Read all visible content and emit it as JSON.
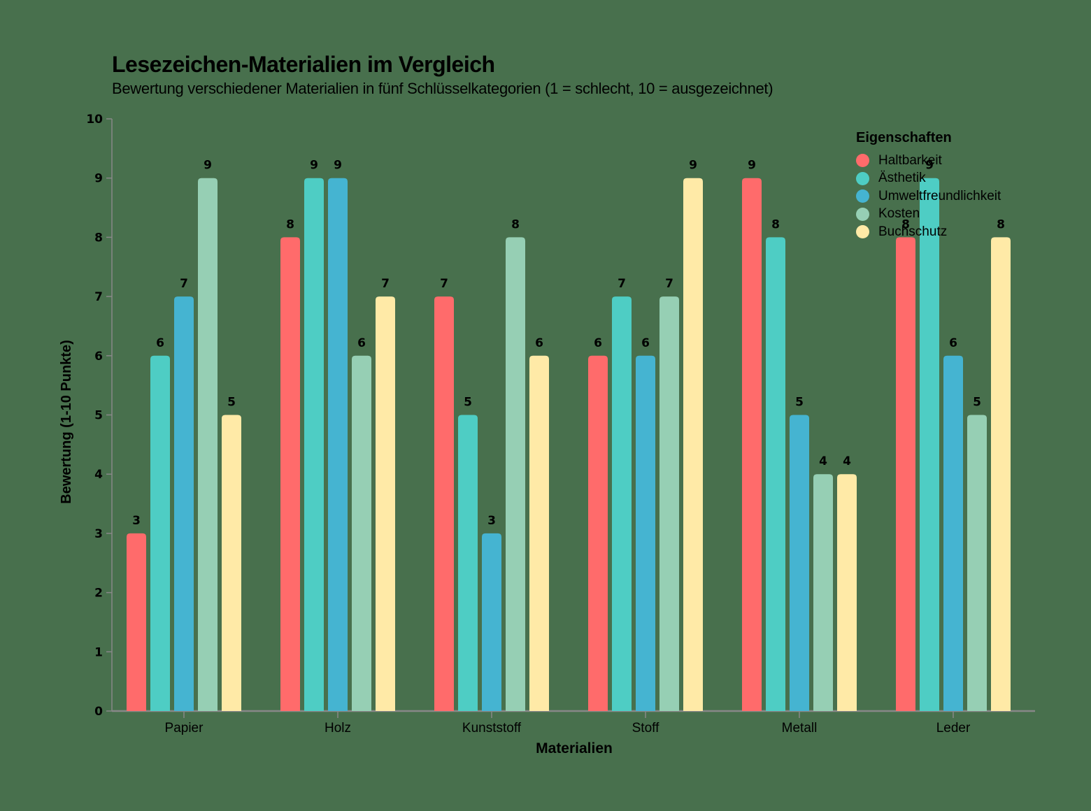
{
  "title": "Lesezeichen-Materialien im Vergleich",
  "subtitle": "Bewertung verschiedener Materialien in fünf Schlüsselkategorien (1 = schlecht, 10 = ausgezeichnet)",
  "legend": {
    "title": "Eigenschaften",
    "items": [
      {
        "label": "Haltbarkeit",
        "color": "#ff6b6b"
      },
      {
        "label": "Ästhetik",
        "color": "#4ecdc4"
      },
      {
        "label": "Umweltfreundlichkeit",
        "color": "#45b4d1"
      },
      {
        "label": "Kosten",
        "color": "#96cfb4"
      },
      {
        "label": "Buchschutz",
        "color": "#ffeaa7"
      }
    ]
  },
  "colors": {
    "background": "#48704d",
    "axis": "#888888"
  },
  "chart_data": {
    "type": "bar",
    "title": "Lesezeichen-Materialien im Vergleich",
    "subtitle": "Bewertung verschiedener Materialien in fünf Schlüsselkategorien (1 = schlecht, 10 = ausgezeichnet)",
    "xlabel": "Materialien",
    "ylabel": "Bewertung (1-10 Punkte)",
    "ylim": [
      0,
      10
    ],
    "yticks": [
      0,
      1,
      2,
      3,
      4,
      5,
      6,
      7,
      8,
      9,
      10
    ],
    "grid": false,
    "legend_position": "top-right",
    "categories": [
      "Papier",
      "Holz",
      "Kunststoff",
      "Stoff",
      "Metall",
      "Leder"
    ],
    "series": [
      {
        "name": "Haltbarkeit",
        "color": "#ff6b6b",
        "values": [
          3,
          8,
          7,
          6,
          9,
          8
        ]
      },
      {
        "name": "Ästhetik",
        "color": "#4ecdc4",
        "values": [
          6,
          9,
          5,
          7,
          8,
          9
        ]
      },
      {
        "name": "Umweltfreundlichkeit",
        "color": "#45b4d1",
        "values": [
          7,
          9,
          3,
          6,
          5,
          6
        ]
      },
      {
        "name": "Kosten",
        "color": "#96cfb4",
        "values": [
          9,
          6,
          8,
          7,
          4,
          5
        ]
      },
      {
        "name": "Buchschutz",
        "color": "#ffeaa7",
        "values": [
          5,
          7,
          6,
          9,
          4,
          8
        ]
      }
    ]
  }
}
